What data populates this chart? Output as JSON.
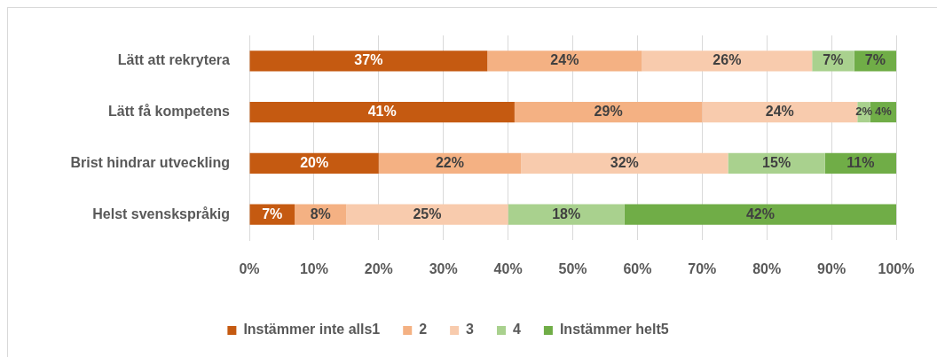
{
  "chart_data": {
    "type": "bar",
    "orientation": "horizontal",
    "stacked": true,
    "categories": [
      "Lätt att rekrytera",
      "Lätt få kompetens",
      "Brist hindrar utveckling",
      "Helst svenskspråkig"
    ],
    "series": [
      {
        "name": "Instämmer inte alls1",
        "color": "#c55a11",
        "values": [
          36.8,
          41,
          20,
          7
        ],
        "value_labels": [
          "37%",
          "41%",
          "20%",
          "7%"
        ]
      },
      {
        "name": "2",
        "color": "#f4b183",
        "values": [
          23.9,
          29,
          22,
          8
        ],
        "value_labels": [
          "24%",
          "29%",
          "22%",
          "8%"
        ]
      },
      {
        "name": "3",
        "color": "#f8cbad",
        "values": [
          26.3,
          24,
          32,
          25
        ],
        "value_labels": [
          "26%",
          "24%",
          "32%",
          "25%"
        ]
      },
      {
        "name": "4",
        "color": "#a9d18e",
        "values": [
          6.5,
          2,
          15,
          18
        ],
        "value_labels": [
          "7%",
          "2%",
          "15%",
          "18%"
        ]
      },
      {
        "name": "Instämmer helt5",
        "color": "#70ad47",
        "values": [
          6.5,
          4,
          11,
          42
        ],
        "value_labels": [
          "7%",
          "4%",
          "11%",
          "42%"
        ]
      }
    ],
    "xlim": [
      0,
      100
    ],
    "xticks": [
      {
        "value": 0,
        "label": "0%"
      },
      {
        "value": 10,
        "label": "10%"
      },
      {
        "value": 20,
        "label": "20%"
      },
      {
        "value": 30,
        "label": "30%"
      },
      {
        "value": 40,
        "label": "40%"
      },
      {
        "value": 50,
        "label": "50%"
      },
      {
        "value": 60,
        "label": "60%"
      },
      {
        "value": 70,
        "label": "70%"
      },
      {
        "value": 80,
        "label": "80%"
      },
      {
        "value": 90,
        "label": "90%"
      },
      {
        "value": 100,
        "label": "100%"
      }
    ],
    "grid": "x",
    "legend": "bottom"
  }
}
